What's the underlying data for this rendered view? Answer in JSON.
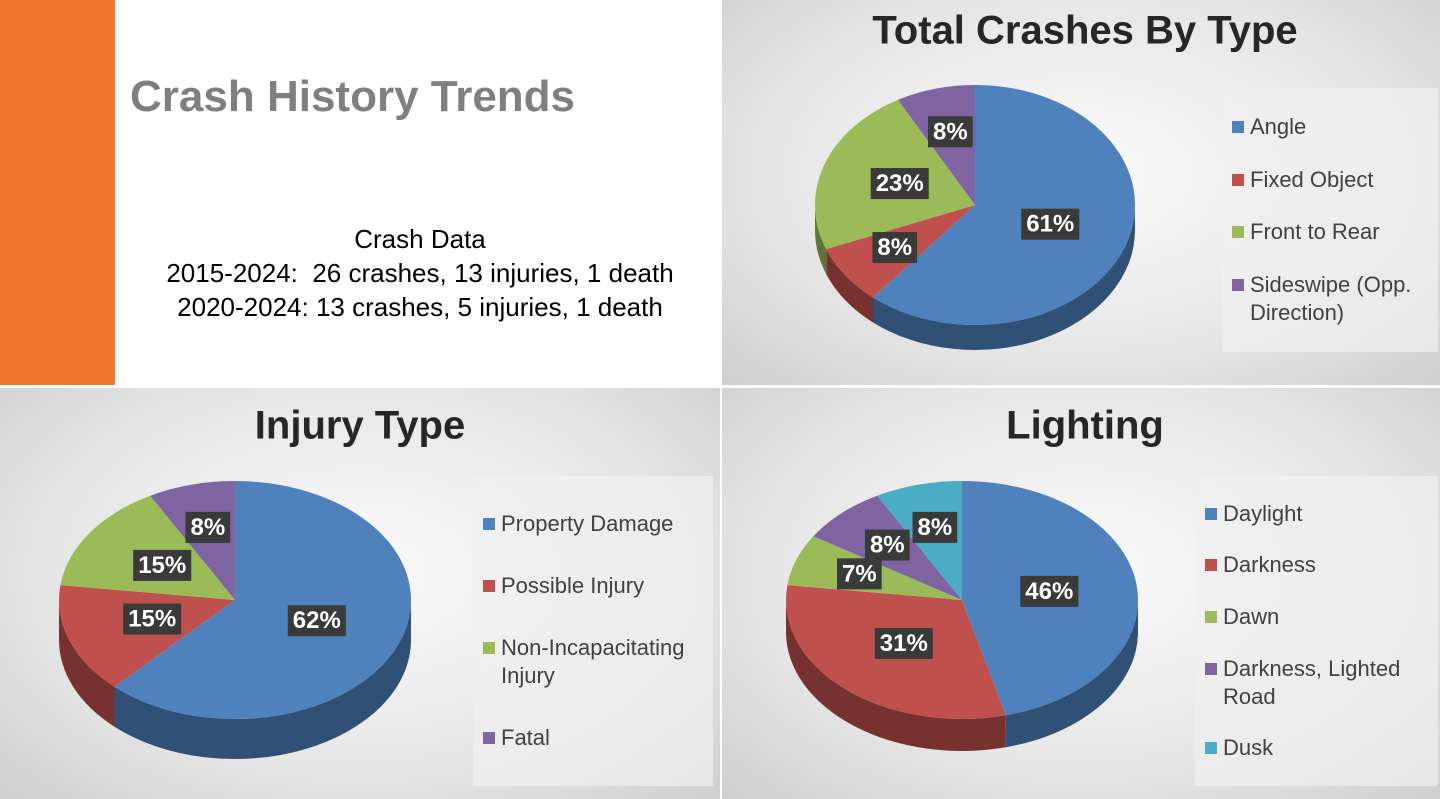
{
  "header": {
    "title": "Crash History Trends"
  },
  "summary": {
    "heading": "Crash Data",
    "lines": [
      "2015-2024:  26 crashes, 13 injuries, 1 death",
      "2020-2024: 13 crashes, 5 injuries, 1 death"
    ]
  },
  "chart_data": [
    {
      "type": "pie",
      "title": "Total Crashes By Type",
      "categories": [
        "Angle",
        "Fixed Object",
        "Front to Rear",
        "Sideswipe (Opp. Direction)"
      ],
      "values": [
        61,
        8,
        23,
        8
      ],
      "value_labels": [
        "61%",
        "8%",
        "23%",
        "8%"
      ],
      "colors": [
        "#4f81bd",
        "#c0504d",
        "#9bbb59",
        "#8064a2"
      ]
    },
    {
      "type": "pie",
      "title": "Injury Type",
      "categories": [
        "Property Damage",
        "Possible Injury",
        "Non-Incapacitating Injury",
        "Fatal"
      ],
      "values": [
        62,
        15,
        15,
        8
      ],
      "value_labels": [
        "62%",
        "15%",
        "15%",
        "8%"
      ],
      "colors": [
        "#4f81bd",
        "#c0504d",
        "#9bbb59",
        "#8064a2"
      ]
    },
    {
      "type": "pie",
      "title": "Lighting",
      "categories": [
        "Daylight",
        "Darkness",
        "Dawn",
        "Darkness, Lighted Road",
        "Dusk"
      ],
      "values": [
        46,
        31,
        7,
        8,
        8
      ],
      "value_labels": [
        "46%",
        "31%",
        "7%",
        "8%",
        "8%"
      ],
      "colors": [
        "#4f81bd",
        "#c0504d",
        "#9bbb59",
        "#8064a2",
        "#4bacc6"
      ]
    }
  ]
}
